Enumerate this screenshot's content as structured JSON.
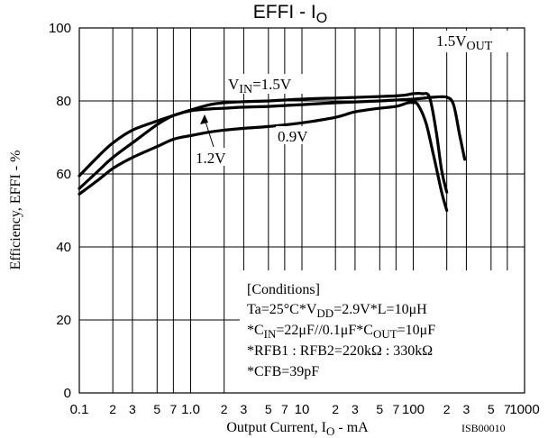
{
  "chart_data": {
    "type": "line",
    "title": {
      "main": "EFFI - I",
      "sub": "O"
    },
    "xlabel": {
      "main": "Output Current, I",
      "sub": "O",
      "tail": " - mA"
    },
    "ylabel": "Efficiency, EFFI - %",
    "x_scale": "log",
    "xlim": [
      0.1,
      1000
    ],
    "ylim": [
      0,
      100
    ],
    "grid": true,
    "figure_code": "ISB00010",
    "x_ticks": [
      {
        "value": 0.1,
        "label": "0.1",
        "major": true
      },
      {
        "value": 0.2,
        "label": "2"
      },
      {
        "value": 0.3,
        "label": "3"
      },
      {
        "value": 0.5,
        "label": "5"
      },
      {
        "value": 0.7,
        "label": "7"
      },
      {
        "value": 1,
        "label": "1.0",
        "major": true
      },
      {
        "value": 2,
        "label": "2"
      },
      {
        "value": 3,
        "label": "3"
      },
      {
        "value": 5,
        "label": "5"
      },
      {
        "value": 7,
        "label": "7"
      },
      {
        "value": 10,
        "label": "10",
        "major": true
      },
      {
        "value": 20,
        "label": "2"
      },
      {
        "value": 30,
        "label": "3"
      },
      {
        "value": 50,
        "label": "5"
      },
      {
        "value": 70,
        "label": "7"
      },
      {
        "value": 100,
        "label": "100",
        "major": true
      },
      {
        "value": 200,
        "label": "2"
      },
      {
        "value": 300,
        "label": "3"
      },
      {
        "value": 500,
        "label": "5"
      },
      {
        "value": 700,
        "label": "7"
      },
      {
        "value": 1000,
        "label": "1000",
        "major": true
      }
    ],
    "y_ticks": [
      {
        "value": 0,
        "label": "0"
      },
      {
        "value": 20,
        "label": "20"
      },
      {
        "value": 40,
        "label": "40"
      },
      {
        "value": 60,
        "label": "60"
      },
      {
        "value": 80,
        "label": "80"
      },
      {
        "value": 100,
        "label": "100"
      }
    ],
    "series": [
      {
        "points": [
          [
            0.1,
            59.5
          ],
          [
            0.15,
            65
          ],
          [
            0.2,
            68.5
          ],
          [
            0.3,
            72
          ],
          [
            0.5,
            74.5
          ],
          [
            0.7,
            76
          ],
          [
            1,
            77.5
          ],
          [
            1.5,
            79
          ],
          [
            2,
            79.5
          ],
          [
            3,
            79.8
          ],
          [
            5,
            80
          ],
          [
            10,
            80.5
          ],
          [
            20,
            80.8
          ],
          [
            50,
            81.2
          ],
          [
            80,
            81.5
          ],
          [
            100,
            82
          ],
          [
            120,
            82
          ],
          [
            140,
            81
          ],
          [
            160,
            72
          ],
          [
            180,
            61
          ],
          [
            200,
            55
          ]
        ]
      },
      {
        "points": [
          [
            0.1,
            56
          ],
          [
            0.15,
            61
          ],
          [
            0.2,
            64.5
          ],
          [
            0.3,
            68.5
          ],
          [
            0.5,
            73.5
          ],
          [
            0.7,
            76
          ],
          [
            1,
            77.3
          ],
          [
            1.5,
            77.8
          ],
          [
            2,
            78
          ],
          [
            3,
            78.3
          ],
          [
            5,
            78.5
          ],
          [
            10,
            79
          ],
          [
            20,
            79.5
          ],
          [
            50,
            80
          ],
          [
            100,
            80.5
          ],
          [
            150,
            81
          ],
          [
            200,
            81
          ],
          [
            230,
            79
          ],
          [
            260,
            71
          ],
          [
            290,
            64
          ]
        ]
      },
      {
        "points": [
          [
            0.1,
            54.5
          ],
          [
            0.15,
            58.5
          ],
          [
            0.2,
            61.5
          ],
          [
            0.3,
            64.5
          ],
          [
            0.5,
            67.5
          ],
          [
            0.7,
            69.5
          ],
          [
            1,
            70.5
          ],
          [
            1.5,
            71.5
          ],
          [
            2,
            72
          ],
          [
            3,
            72.5
          ],
          [
            5,
            73
          ],
          [
            10,
            74
          ],
          [
            20,
            75.5
          ],
          [
            30,
            77
          ],
          [
            50,
            78
          ],
          [
            70,
            78.5
          ],
          [
            90,
            79.5
          ],
          [
            100,
            79.5
          ],
          [
            110,
            79
          ],
          [
            130,
            74
          ],
          [
            150,
            66
          ],
          [
            180,
            55
          ],
          [
            200,
            50
          ]
        ]
      }
    ],
    "annotations": {
      "vin": {
        "main": "V",
        "sub": "IN",
        "tail": "=1.5V"
      },
      "v12": "1.2V",
      "v09": "0.9V",
      "vout": {
        "main": "1.5V",
        "sub": "OUT"
      }
    },
    "conditions": {
      "heading": "[Conditions]",
      "line1": {
        "a": "Ta=25°C*V",
        "sub": "DD",
        "b": "=2.9V*L=10μH"
      },
      "line2": {
        "a": "*C",
        "sub1": "IN",
        "b": "=22μF//0.1μF*C",
        "sub2": "OUT",
        "c": "=10μF"
      },
      "line3": "*RFB1 : RFB2=220kΩ : 330kΩ",
      "line4": "*CFB=39pF"
    }
  }
}
